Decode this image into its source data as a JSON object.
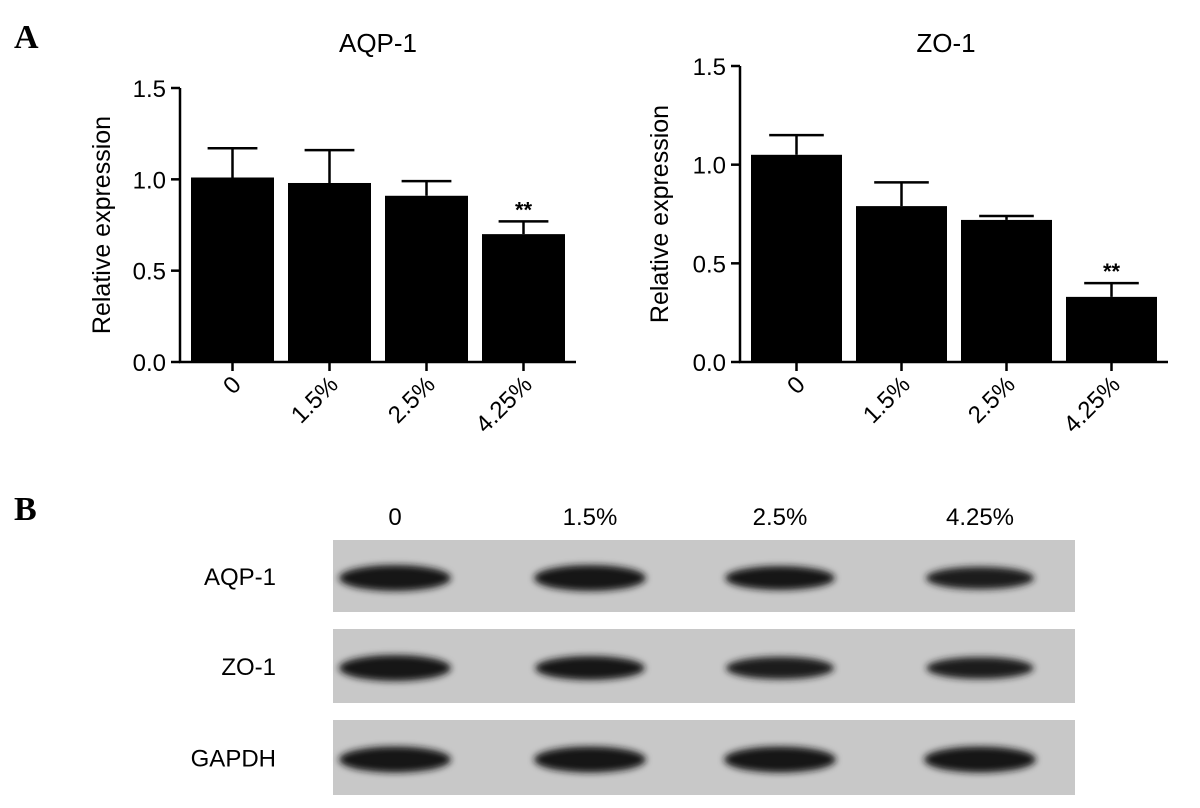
{
  "panels": [
    {
      "letter": "A"
    },
    {
      "letter": "B"
    }
  ],
  "chart_data": [
    {
      "type": "bar",
      "title": "AQP-1",
      "ylabel": "Relative expression",
      "xlabel": "",
      "categories": [
        "0",
        "1.5%",
        "2.5%",
        "4.25%"
      ],
      "values": [
        1.01,
        0.98,
        0.91,
        0.7
      ],
      "errors": [
        0.16,
        0.18,
        0.08,
        0.07
      ],
      "significance": [
        "",
        "",
        "",
        "**"
      ],
      "ylim": [
        0,
        1.5
      ],
      "yticks": [
        "0.0",
        "0.5",
        "1.0",
        "1.5"
      ],
      "bar_color": "#000000",
      "grid": false
    },
    {
      "type": "bar",
      "title": "ZO-1",
      "ylabel": "Relative expression",
      "xlabel": "",
      "categories": [
        "0",
        "1.5%",
        "2.5%",
        "4.25%"
      ],
      "values": [
        1.05,
        0.79,
        0.72,
        0.33
      ],
      "errors": [
        0.1,
        0.12,
        0.02,
        0.07
      ],
      "significance": [
        "",
        "",
        "",
        "**"
      ],
      "ylim": [
        0,
        1.5
      ],
      "yticks": [
        "0.0",
        "0.5",
        "1.0",
        "1.5"
      ],
      "bar_color": "#000000",
      "grid": false
    }
  ],
  "blot": {
    "lanes": [
      "0",
      "1.5%",
      "2.5%",
      "4.25%"
    ],
    "rows": [
      {
        "label": "AQP-1",
        "intensity": [
          1.0,
          1.0,
          0.85,
          0.75
        ]
      },
      {
        "label": "ZO-1",
        "intensity": [
          1.0,
          0.85,
          0.75,
          0.7
        ]
      },
      {
        "label": "GAPDH",
        "intensity": [
          1.0,
          1.0,
          1.0,
          1.0
        ]
      }
    ]
  }
}
